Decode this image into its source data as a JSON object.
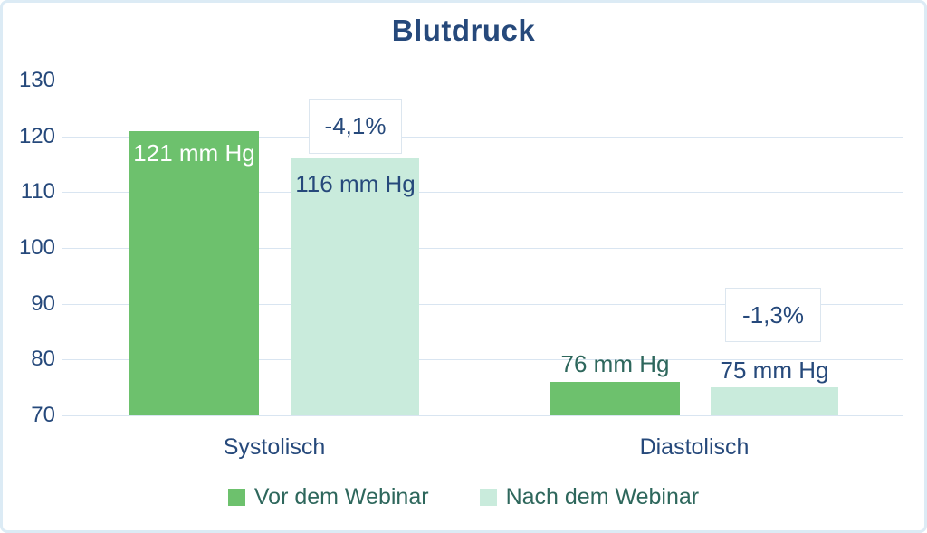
{
  "chart_data": {
    "type": "bar",
    "title": "Blutdruck",
    "categories": [
      "Systolisch",
      "Diastolisch"
    ],
    "series": [
      {
        "name": "Vor dem Webinar",
        "color": "#6dc16d",
        "values": [
          121,
          76
        ],
        "data_labels": [
          "121 mm Hg",
          "76 mm Hg"
        ]
      },
      {
        "name": "Nach dem Webinar",
        "color": "#c9ebdc",
        "values": [
          116,
          75
        ],
        "data_labels": [
          "116 mm Hg",
          "75 mm Hg"
        ]
      }
    ],
    "annotations": [
      {
        "text": "-4,1%",
        "target": "Systolisch Nach dem Webinar"
      },
      {
        "text": "-1,3%",
        "target": "Diastolisch Nach dem Webinar"
      }
    ],
    "ylim": [
      70,
      130
    ],
    "yticks": [
      130,
      120,
      110,
      100,
      90,
      80,
      70
    ],
    "grid": true,
    "legend_position": "bottom",
    "colors": {
      "title_text": "#26497b",
      "axis_text": "#26497b",
      "teal_text": "#2e675c",
      "gridline": "#d9e5f1",
      "frame_border": "#dcebf5",
      "annotation_border": "#dce6ef",
      "label_on_green": "#ffffff"
    }
  }
}
